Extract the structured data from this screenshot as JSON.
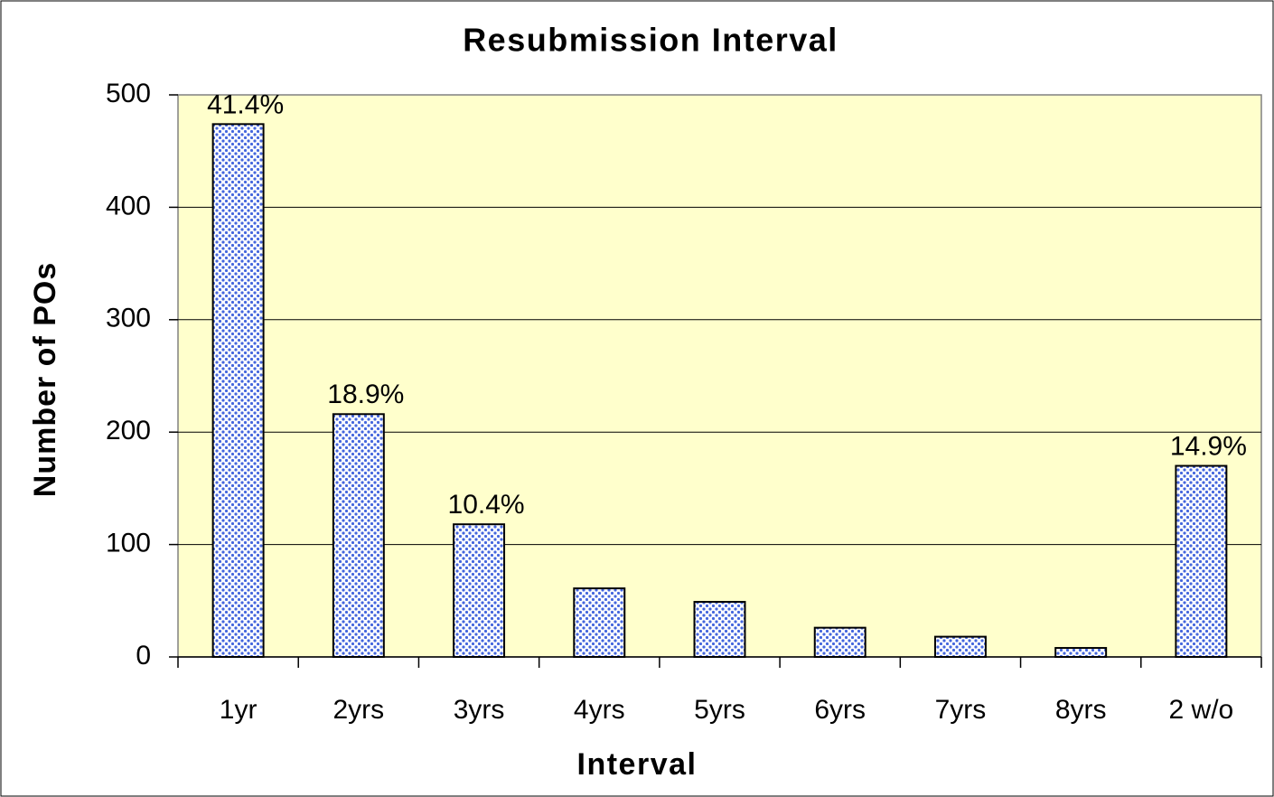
{
  "chart_data": {
    "type": "bar",
    "title": "Resubmission Interval",
    "x_label": "Interval",
    "y_label": "Number of POs",
    "categories": [
      "1yr",
      "2yrs",
      "3yrs",
      "4yrs",
      "5yrs",
      "6yrs",
      "7yrs",
      "8yrs",
      "2 w/o"
    ],
    "values": [
      474,
      216,
      118,
      61,
      49,
      26,
      18,
      8,
      170
    ],
    "percent_labels": [
      "41.4%",
      "18.9%",
      "10.4%",
      null,
      null,
      null,
      null,
      null,
      "14.9%"
    ],
    "color": "#4466dd",
    "ylim": [
      0,
      500
    ],
    "yticks": [
      0,
      100,
      200,
      300,
      400,
      500
    ],
    "grid": true
  }
}
